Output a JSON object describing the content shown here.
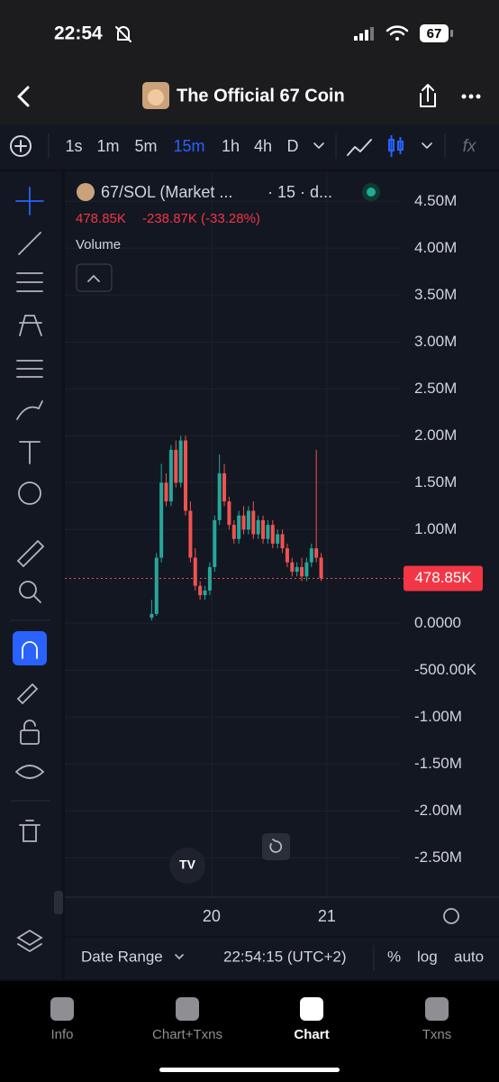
{
  "status_bar": {
    "time": "22:54",
    "battery": "67"
  },
  "header": {
    "title": "The Official 67 Coin"
  },
  "toolbar": {
    "intervals": [
      "1s",
      "1m",
      "5m",
      "15m",
      "1h",
      "4h",
      "D"
    ],
    "active_interval": 3,
    "function_label": "fx"
  },
  "legend": {
    "symbol": "67/SOL (Market ...",
    "details": "· 15 · d...",
    "price": "478.85K",
    "change": "-238.87K (-33.28%)",
    "volume_label": "Volume"
  },
  "chart_data": {
    "type": "candlestick",
    "x": [
      19.48,
      19.522,
      19.564,
      19.606,
      19.648,
      19.69,
      19.732,
      19.774,
      19.816,
      19.858,
      19.9,
      19.942,
      19.984,
      20.026,
      20.068,
      20.11,
      20.152,
      20.194,
      20.236,
      20.278,
      20.32,
      20.362,
      20.404,
      20.446,
      20.488,
      20.53,
      20.572,
      20.614,
      20.656,
      20.698,
      20.74,
      20.782,
      20.824,
      20.866,
      20.908,
      20.95
    ],
    "open": [
      60000,
      100000,
      700000,
      1500000,
      1300000,
      1850000,
      1500000,
      1950000,
      1200000,
      700000,
      400000,
      300000,
      350000,
      600000,
      1100000,
      1600000,
      1300000,
      1050000,
      900000,
      1150000,
      1000000,
      1200000,
      950000,
      1100000,
      900000,
      1050000,
      850000,
      950000,
      800000,
      650000,
      550000,
      600000,
      500000,
      650000,
      800000,
      700000
    ],
    "high": [
      250000,
      750000,
      1700000,
      1600000,
      1900000,
      1950000,
      2000000,
      2000000,
      1300000,
      800000,
      450000,
      400000,
      650000,
      1150000,
      1800000,
      1700000,
      1350000,
      1100000,
      1200000,
      1250000,
      1250000,
      1300000,
      1150000,
      1150000,
      1100000,
      1100000,
      1000000,
      1000000,
      850000,
      700000,
      650000,
      700000,
      700000,
      850000,
      1850000,
      750000
    ],
    "low": [
      30000,
      80000,
      650000,
      1250000,
      1250000,
      1450000,
      1450000,
      1150000,
      650000,
      350000,
      250000,
      250000,
      300000,
      550000,
      1050000,
      1250000,
      1000000,
      850000,
      850000,
      950000,
      950000,
      900000,
      900000,
      850000,
      850000,
      800000,
      800000,
      750000,
      600000,
      500000,
      500000,
      450000,
      450000,
      600000,
      650000,
      450000
    ],
    "close": [
      100000,
      700000,
      1500000,
      1300000,
      1850000,
      1500000,
      1950000,
      1200000,
      700000,
      400000,
      300000,
      350000,
      600000,
      1100000,
      1600000,
      1300000,
      1050000,
      900000,
      1150000,
      1000000,
      1200000,
      950000,
      1100000,
      900000,
      1050000,
      850000,
      950000,
      800000,
      650000,
      550000,
      600000,
      500000,
      650000,
      800000,
      700000,
      478850
    ],
    "up_color": "#26a69a",
    "down_color": "#ef5350",
    "xlim": [
      18.727,
      21.641
    ],
    "xticks": [
      {
        "value": 20,
        "label": "20"
      },
      {
        "value": 21,
        "label": "21"
      }
    ],
    "ylim": [
      -2920000,
      4820000
    ],
    "yticks": [
      {
        "value": 4500000,
        "label": "4.50M"
      },
      {
        "value": 4000000,
        "label": "4.00M"
      },
      {
        "value": 3500000,
        "label": "3.50M"
      },
      {
        "value": 3000000,
        "label": "3.00M"
      },
      {
        "value": 2500000,
        "label": "2.50M"
      },
      {
        "value": 2000000,
        "label": "2.00M"
      },
      {
        "value": 1500000,
        "label": "1.50M"
      },
      {
        "value": 1000000,
        "label": "1.00M"
      },
      {
        "value": 0,
        "label": "0.0000"
      },
      {
        "value": -500000,
        "label": "-500.00K"
      },
      {
        "value": -1000000,
        "label": "-1.00M"
      },
      {
        "value": -1500000,
        "label": "-1.50M"
      },
      {
        "value": -2000000,
        "label": "-2.00M"
      },
      {
        "value": -2500000,
        "label": "-2.50M"
      }
    ],
    "last_price": {
      "value": 478850,
      "label": "478.85K"
    },
    "grid": true
  },
  "bottom_bar": {
    "date_range": "Date Range",
    "time": "22:54:15 (UTC+2)",
    "percent": "%",
    "log": "log",
    "auto": "auto"
  },
  "tab_bar": {
    "tabs": [
      "Info",
      "Chart+Txns",
      "Chart",
      "Txns"
    ],
    "active_tab": 2
  }
}
